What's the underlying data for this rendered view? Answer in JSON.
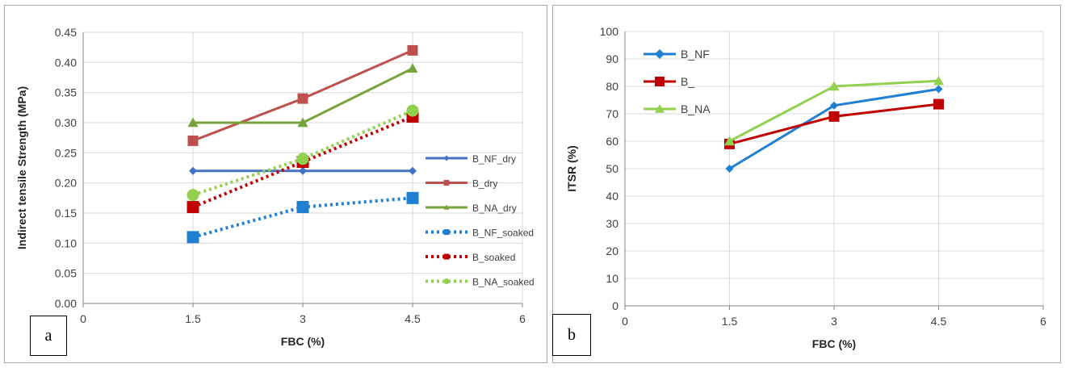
{
  "chart_data": [
    {
      "panel_label": "a",
      "type": "line",
      "xlabel": "FBC (%)",
      "ylabel": "Indirect tensile Strength (MPa)",
      "xlim": [
        0,
        6
      ],
      "ylim": [
        0,
        0.45
      ],
      "x_ticks": [
        "0",
        "1.5",
        "3",
        "4.5",
        "6"
      ],
      "y_ticks": [
        "0.00",
        "0.05",
        "0.10",
        "0.15",
        "0.20",
        "0.25",
        "0.30",
        "0.35",
        "0.40",
        "0.45"
      ],
      "grid": true,
      "legend_position": "right",
      "x": [
        1.5,
        3,
        4.5
      ],
      "series": [
        {
          "name": "B_NF_dry",
          "values": [
            0.22,
            0.22,
            0.22
          ],
          "color": "#4472c4",
          "style": "solid",
          "marker": "diamond"
        },
        {
          "name": "B_dry",
          "values": [
            0.27,
            0.34,
            0.42
          ],
          "color": "#c0504d",
          "style": "solid",
          "marker": "square"
        },
        {
          "name": "B_NA_dry",
          "values": [
            0.3,
            0.3,
            0.39
          ],
          "color": "#77a33c",
          "style": "solid",
          "marker": "triangle"
        },
        {
          "name": "B_NF_soaked",
          "values": [
            0.11,
            0.16,
            0.175
          ],
          "color": "#1f7fd0",
          "style": "dotted",
          "marker": "square"
        },
        {
          "name": "B_soaked",
          "values": [
            0.16,
            0.235,
            0.31
          ],
          "color": "#c00000",
          "style": "dotted",
          "marker": "square"
        },
        {
          "name": "B_NA_soaked",
          "values": [
            0.18,
            0.24,
            0.32
          ],
          "color": "#92d050",
          "style": "dotted",
          "marker": "circle"
        }
      ]
    },
    {
      "panel_label": "b",
      "type": "line",
      "xlabel": "FBC (%)",
      "ylabel": "ITSR  (%)",
      "xlim": [
        0,
        6
      ],
      "ylim": [
        0,
        100
      ],
      "x_ticks": [
        "0",
        "1.5",
        "3",
        "4.5",
        "6"
      ],
      "y_ticks": [
        "0",
        "10",
        "20",
        "30",
        "40",
        "50",
        "60",
        "70",
        "80",
        "90",
        "100"
      ],
      "grid": true,
      "legend_position": "top-left",
      "x": [
        1.5,
        3,
        4.5
      ],
      "series": [
        {
          "name": "B_NF",
          "values": [
            50,
            73,
            79
          ],
          "color": "#1f7fd0",
          "style": "solid",
          "marker": "diamond"
        },
        {
          "name": "B_",
          "values": [
            59,
            69,
            73.5
          ],
          "color": "#c00000",
          "style": "solid",
          "marker": "square"
        },
        {
          "name": "B_NA",
          "values": [
            60,
            80,
            82
          ],
          "color": "#92d050",
          "style": "solid",
          "marker": "triangle"
        }
      ]
    }
  ]
}
